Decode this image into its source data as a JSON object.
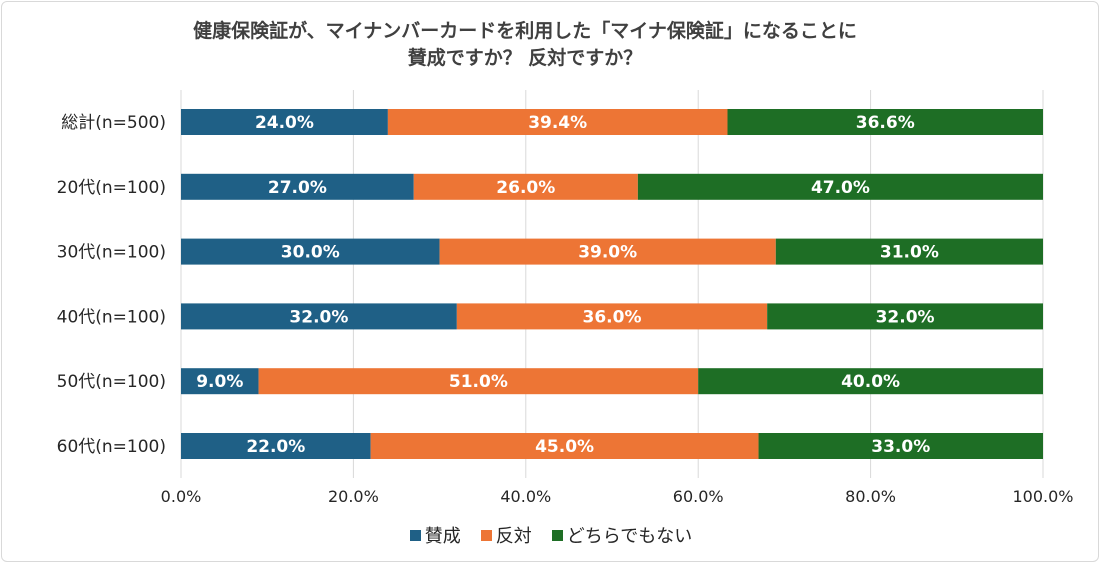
{
  "title_line1": "健康保険証が、マイナンバーカードを利用した「マイナ保険証」になることに",
  "title_line2": "賛成ですか？ 反対ですか？",
  "colors": {
    "賛成": "#1f6086",
    "反対": "#ed7535",
    "どちらでもない": "#1e6e25",
    "grid": "#d9d9d9",
    "text": "#262626"
  },
  "chart_data": {
    "type": "bar",
    "orientation": "horizontal",
    "stacked": "100%",
    "categories": [
      "総計(n=500)",
      "20代(n=100)",
      "30代(n=100)",
      "40代(n=100)",
      "50代(n=100)",
      "60代(n=100)"
    ],
    "series": [
      {
        "name": "賛成",
        "values": [
          24.0,
          27.0,
          30.0,
          32.0,
          9.0,
          22.0
        ]
      },
      {
        "name": "反対",
        "values": [
          39.4,
          26.0,
          39.0,
          36.0,
          51.0,
          45.0
        ]
      },
      {
        "name": "どちらでもない",
        "values": [
          36.6,
          47.0,
          31.0,
          32.0,
          40.0,
          33.0
        ]
      }
    ],
    "data_labels": [
      [
        "24.0%",
        "39.4%",
        "36.6%"
      ],
      [
        "27.0%",
        "26.0%",
        "47.0%"
      ],
      [
        "30.0%",
        "39.0%",
        "31.0%"
      ],
      [
        "32.0%",
        "36.0%",
        "32.0%"
      ],
      [
        "9.0%",
        "51.0%",
        "40.0%"
      ],
      [
        "22.0%",
        "45.0%",
        "33.0%"
      ]
    ],
    "xlim": [
      0,
      100
    ],
    "xticks": [
      "0.0%",
      "20.0%",
      "40.0%",
      "60.0%",
      "80.0%",
      "100.0%"
    ],
    "grid": true,
    "legend": "bottom"
  }
}
